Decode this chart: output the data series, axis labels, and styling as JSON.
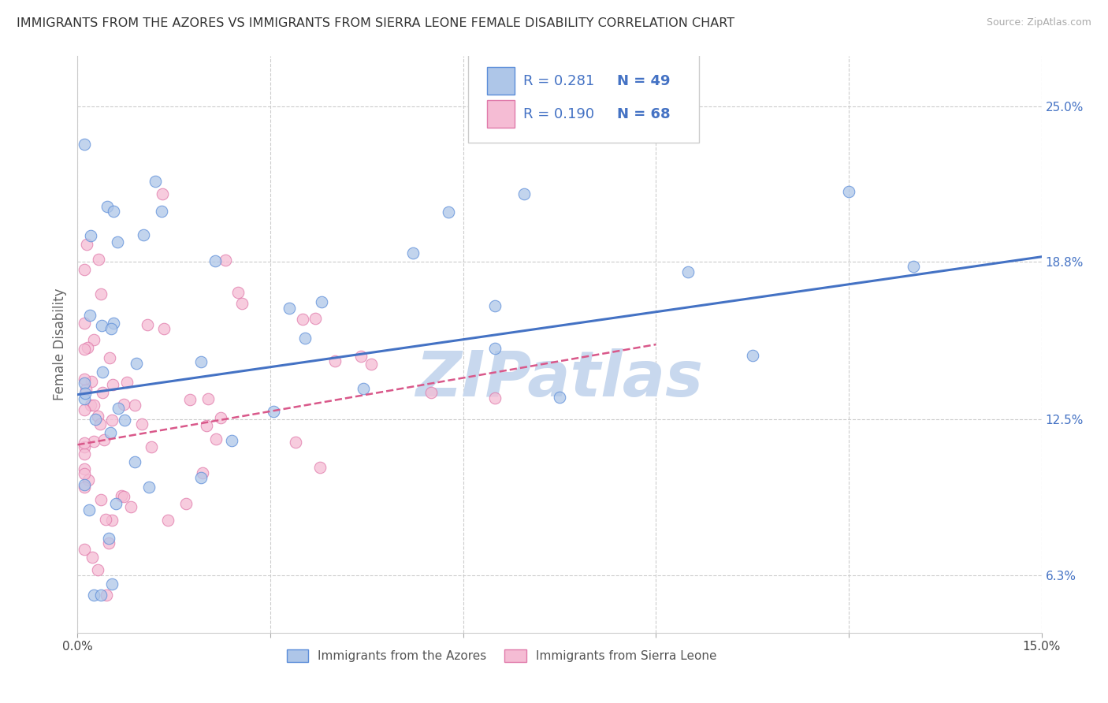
{
  "title": "IMMIGRANTS FROM THE AZORES VS IMMIGRANTS FROM SIERRA LEONE FEMALE DISABILITY CORRELATION CHART",
  "source": "Source: ZipAtlas.com",
  "ylabel": "Female Disability",
  "xlim": [
    0.0,
    0.15
  ],
  "ylim": [
    0.04,
    0.27
  ],
  "xticks": [
    0.0,
    0.03,
    0.06,
    0.09,
    0.12,
    0.15
  ],
  "xticklabels": [
    "0.0%",
    "",
    "",
    "",
    "",
    "15.0%"
  ],
  "ytick_positions": [
    0.063,
    0.125,
    0.188,
    0.25
  ],
  "ytick_labels": [
    "6.3%",
    "12.5%",
    "18.8%",
    "25.0%"
  ],
  "series1_label": "Immigrants from the Azores",
  "series1_R": "0.281",
  "series1_N": "49",
  "series1_color": "#aec6e8",
  "series1_edge_color": "#5b8dd9",
  "series1_line_color": "#4472c4",
  "series2_label": "Immigrants from Sierra Leone",
  "series2_R": "0.190",
  "series2_N": "68",
  "series2_color": "#f5bcd4",
  "series2_edge_color": "#e07aaa",
  "series2_line_color": "#d9588a",
  "legend_text_color": "#4472c4",
  "watermark": "ZIPatlas",
  "watermark_color": "#c8d8ee",
  "background_color": "#ffffff",
  "grid_color": "#cccccc"
}
